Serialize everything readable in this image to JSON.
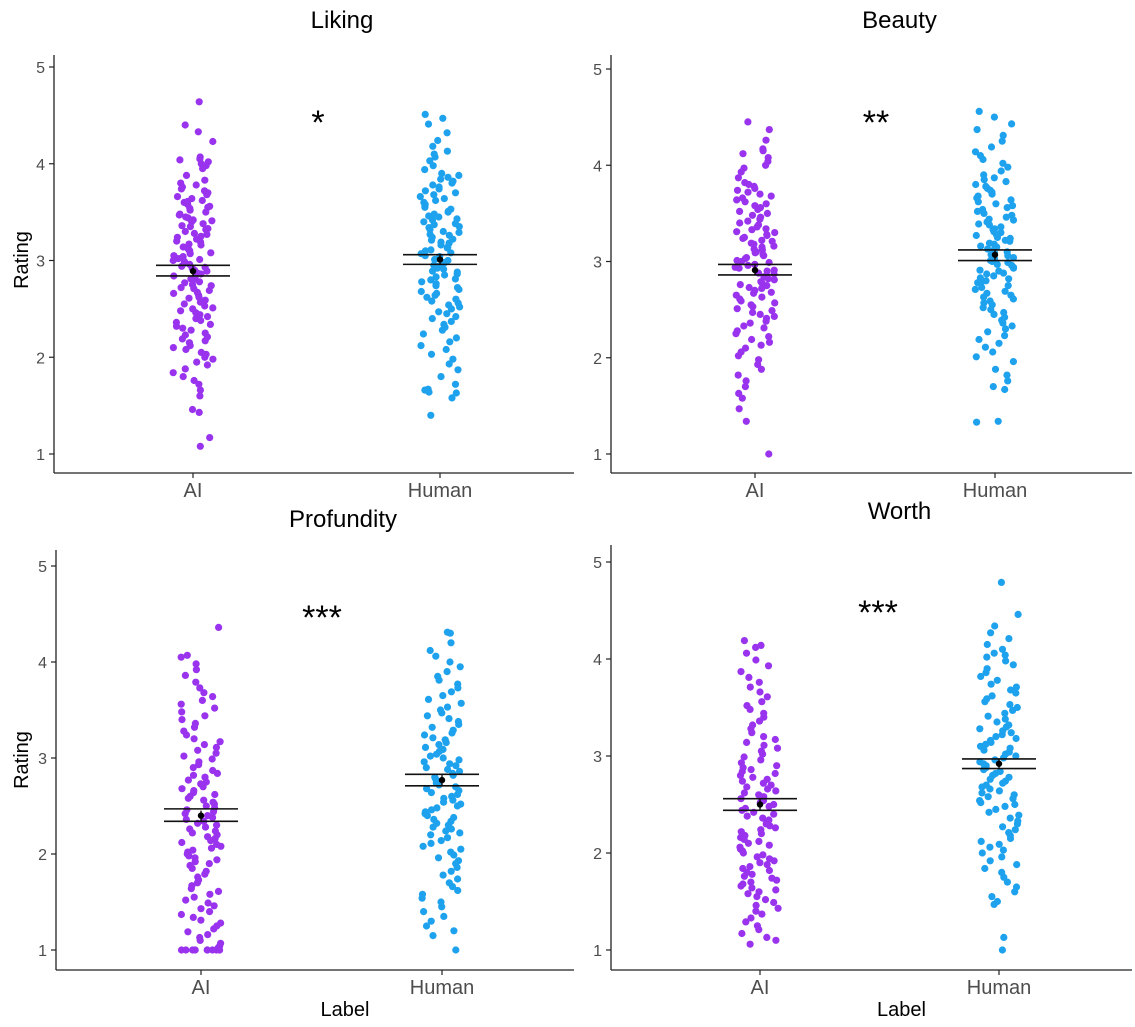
{
  "figure": {
    "y_axis_label": "Rating",
    "x_axis_label": "Label"
  },
  "colors": {
    "AI": "#9933ee",
    "Human": "#1fa2ee",
    "axis": "#222222",
    "tick_label": "#4d4d4d",
    "error_bar": "#111111"
  },
  "chart_data": [
    {
      "type": "scatter",
      "title": "Liking",
      "categories": [
        "AI",
        "Human"
      ],
      "ylim": [
        0.92,
        5.1
      ],
      "yticks": [
        1,
        2,
        3,
        4,
        5
      ],
      "grid": false,
      "significance": "*",
      "series": [
        {
          "name": "AI",
          "ci_low": 2.84,
          "ci_high": 2.95,
          "mean": 2.89,
          "values": [
            4.64,
            4.4,
            4.33,
            4.23,
            4.07,
            4.05,
            4.04,
            4.02,
            4.0,
            3.98,
            3.95,
            3.88,
            3.83,
            3.8,
            3.78,
            3.76,
            3.74,
            3.72,
            3.7,
            3.68,
            3.66,
            3.64,
            3.62,
            3.61,
            3.6,
            3.58,
            3.56,
            3.55,
            3.54,
            3.52,
            3.5,
            3.48,
            3.47,
            3.45,
            3.44,
            3.42,
            3.41,
            3.4,
            3.38,
            3.36,
            3.35,
            3.33,
            3.32,
            3.3,
            3.28,
            3.27,
            3.25,
            3.24,
            3.22,
            3.2,
            3.19,
            3.17,
            3.16,
            3.14,
            3.12,
            3.11,
            3.1,
            3.08,
            3.07,
            3.05,
            3.04,
            3.02,
            3.01,
            3.0,
            2.99,
            2.97,
            2.96,
            2.94,
            2.93,
            2.92,
            2.9,
            2.89,
            2.87,
            2.86,
            2.84,
            2.83,
            2.81,
            2.8,
            2.78,
            2.77,
            2.75,
            2.74,
            2.72,
            2.71,
            2.69,
            2.67,
            2.66,
            2.64,
            2.62,
            2.61,
            2.59,
            2.57,
            2.55,
            2.53,
            2.51,
            2.5,
            2.48,
            2.46,
            2.44,
            2.42,
            2.4,
            2.38,
            2.36,
            2.34,
            2.32,
            2.3,
            2.28,
            2.25,
            2.23,
            2.21,
            2.19,
            2.17,
            2.15,
            2.12,
            2.1,
            2.08,
            2.05,
            2.03,
            2.0,
            1.98,
            1.95,
            1.92,
            1.88,
            1.84,
            1.8,
            1.76,
            1.72,
            1.66,
            1.6,
            1.46,
            1.43,
            1.17,
            1.08
          ]
        },
        {
          "name": "Human",
          "ci_low": 2.96,
          "ci_high": 3.06,
          "mean": 3.01,
          "values": [
            4.51,
            4.47,
            4.41,
            4.32,
            4.24,
            4.18,
            4.13,
            4.1,
            4.07,
            4.03,
            3.98,
            3.94,
            3.9,
            3.88,
            3.86,
            3.84,
            3.82,
            3.8,
            3.78,
            3.76,
            3.74,
            3.72,
            3.7,
            3.68,
            3.66,
            3.64,
            3.62,
            3.6,
            3.58,
            3.56,
            3.55,
            3.53,
            3.51,
            3.5,
            3.48,
            3.46,
            3.45,
            3.43,
            3.42,
            3.4,
            3.38,
            3.37,
            3.35,
            3.34,
            3.32,
            3.3,
            3.29,
            3.27,
            3.26,
            3.24,
            3.22,
            3.21,
            3.19,
            3.18,
            3.16,
            3.14,
            3.13,
            3.11,
            3.1,
            3.08,
            3.07,
            3.05,
            3.04,
            3.02,
            3.01,
            3.0,
            2.98,
            2.97,
            2.95,
            2.94,
            2.92,
            2.91,
            2.89,
            2.88,
            2.86,
            2.85,
            2.83,
            2.81,
            2.8,
            2.78,
            2.76,
            2.74,
            2.72,
            2.7,
            2.68,
            2.66,
            2.64,
            2.62,
            2.6,
            2.58,
            2.56,
            2.54,
            2.52,
            2.5,
            2.47,
            2.45,
            2.42,
            2.4,
            2.37,
            2.34,
            2.31,
            2.28,
            2.24,
            2.2,
            2.16,
            2.12,
            2.08,
            2.03,
            1.98,
            1.93,
            1.87,
            1.8,
            1.72,
            1.67,
            1.66,
            1.64,
            1.63,
            1.58,
            1.4
          ]
        }
      ]
    },
    {
      "type": "scatter",
      "title": "Beauty",
      "categories": [
        "AI",
        "Human"
      ],
      "ylim": [
        0.92,
        5.1
      ],
      "yticks": [
        1,
        2,
        3,
        4,
        5
      ],
      "grid": false,
      "significance": "**",
      "series": [
        {
          "name": "AI",
          "ci_low": 2.86,
          "ci_high": 2.97,
          "mean": 2.91,
          "values": [
            4.45,
            4.37,
            4.26,
            4.17,
            4.15,
            4.12,
            4.08,
            4.04,
            4.0,
            3.97,
            3.93,
            3.87,
            3.82,
            3.8,
            3.78,
            3.76,
            3.74,
            3.72,
            3.7,
            3.68,
            3.66,
            3.64,
            3.62,
            3.6,
            3.58,
            3.56,
            3.54,
            3.52,
            3.5,
            3.48,
            3.46,
            3.44,
            3.42,
            3.4,
            3.38,
            3.36,
            3.34,
            3.33,
            3.31,
            3.3,
            3.28,
            3.27,
            3.25,
            3.24,
            3.22,
            3.21,
            3.19,
            3.18,
            3.16,
            3.15,
            3.13,
            3.12,
            3.1,
            3.09,
            3.07,
            3.06,
            3.04,
            3.03,
            3.01,
            3.0,
            2.99,
            2.97,
            2.96,
            2.94,
            2.93,
            2.91,
            2.9,
            2.88,
            2.87,
            2.85,
            2.84,
            2.82,
            2.81,
            2.79,
            2.78,
            2.76,
            2.75,
            2.73,
            2.72,
            2.7,
            2.68,
            2.67,
            2.65,
            2.63,
            2.61,
            2.59,
            2.57,
            2.55,
            2.53,
            2.51,
            2.49,
            2.47,
            2.45,
            2.43,
            2.41,
            2.38,
            2.36,
            2.33,
            2.31,
            2.28,
            2.25,
            2.22,
            2.19,
            2.16,
            2.13,
            2.1,
            2.06,
            2.02,
            1.98,
            1.93,
            1.88,
            1.82,
            1.76,
            1.7,
            1.63,
            1.58,
            1.47,
            1.34,
            1.0
          ]
        },
        {
          "name": "Human",
          "ci_low": 3.01,
          "ci_high": 3.12,
          "mean": 3.07,
          "values": [
            4.56,
            4.5,
            4.43,
            4.37,
            4.31,
            4.25,
            4.19,
            4.14,
            4.1,
            4.06,
            4.02,
            3.98,
            3.94,
            3.9,
            3.87,
            3.85,
            3.83,
            3.8,
            3.78,
            3.76,
            3.74,
            3.72,
            3.7,
            3.68,
            3.66,
            3.64,
            3.62,
            3.6,
            3.58,
            3.56,
            3.54,
            3.52,
            3.5,
            3.48,
            3.46,
            3.44,
            3.43,
            3.41,
            3.39,
            3.38,
            3.36,
            3.34,
            3.33,
            3.31,
            3.3,
            3.28,
            3.27,
            3.25,
            3.24,
            3.22,
            3.21,
            3.19,
            3.18,
            3.16,
            3.15,
            3.13,
            3.12,
            3.1,
            3.09,
            3.07,
            3.06,
            3.04,
            3.03,
            3.01,
            3.0,
            2.99,
            2.97,
            2.96,
            2.94,
            2.93,
            2.91,
            2.9,
            2.88,
            2.87,
            2.85,
            2.83,
            2.82,
            2.8,
            2.78,
            2.77,
            2.75,
            2.73,
            2.71,
            2.69,
            2.67,
            2.65,
            2.63,
            2.61,
            2.59,
            2.57,
            2.55,
            2.52,
            2.5,
            2.47,
            2.45,
            2.42,
            2.39,
            2.36,
            2.33,
            2.3,
            2.27,
            2.23,
            2.19,
            2.15,
            2.11,
            2.06,
            2.01,
            1.96,
            1.88,
            1.82,
            1.76,
            1.7,
            1.67,
            1.34,
            1.33
          ]
        }
      ]
    },
    {
      "type": "scatter",
      "title": "Profundity",
      "categories": [
        "AI",
        "Human"
      ],
      "ylim": [
        0.92,
        5.1
      ],
      "yticks": [
        1,
        2,
        3,
        4,
        5
      ],
      "grid": false,
      "significance": "***",
      "xlabel": "Label",
      "series": [
        {
          "name": "AI",
          "ci_low": 2.34,
          "ci_high": 2.47,
          "mean": 2.4,
          "values": [
            4.36,
            4.07,
            4.05,
            3.98,
            3.92,
            3.86,
            3.79,
            3.73,
            3.68,
            3.64,
            3.6,
            3.56,
            3.52,
            3.48,
            3.44,
            3.4,
            3.36,
            3.32,
            3.28,
            3.24,
            3.2,
            3.17,
            3.14,
            3.11,
            3.08,
            3.05,
            3.02,
            2.99,
            2.96,
            2.93,
            2.9,
            2.87,
            2.84,
            2.82,
            2.8,
            2.77,
            2.75,
            2.73,
            2.7,
            2.68,
            2.66,
            2.64,
            2.62,
            2.6,
            2.58,
            2.56,
            2.54,
            2.52,
            2.5,
            2.48,
            2.46,
            2.44,
            2.42,
            2.4,
            2.38,
            2.36,
            2.34,
            2.32,
            2.3,
            2.28,
            2.26,
            2.24,
            2.22,
            2.2,
            2.18,
            2.16,
            2.14,
            2.12,
            2.1,
            2.08,
            2.06,
            2.04,
            2.02,
            2.0,
            1.98,
            1.96,
            1.94,
            1.92,
            1.9,
            1.88,
            1.85,
            1.82,
            1.79,
            1.76,
            1.73,
            1.7,
            1.67,
            1.64,
            1.61,
            1.58,
            1.55,
            1.52,
            1.49,
            1.46,
            1.43,
            1.4,
            1.37,
            1.34,
            1.31,
            1.28,
            1.25,
            1.22,
            1.19,
            1.16,
            1.13,
            1.1,
            1.07,
            1.04,
            1.02,
            1.0,
            1.0,
            1.0,
            1.0,
            1.0,
            1.0,
            1.0,
            1.0,
            1.0,
            1.0
          ]
        },
        {
          "name": "Human",
          "ci_low": 2.71,
          "ci_high": 2.83,
          "mean": 2.77,
          "values": [
            4.31,
            4.3,
            4.2,
            4.12,
            4.06,
            4.0,
            3.95,
            3.9,
            3.85,
            3.81,
            3.77,
            3.73,
            3.69,
            3.65,
            3.61,
            3.57,
            3.53,
            3.5,
            3.47,
            3.44,
            3.41,
            3.38,
            3.35,
            3.32,
            3.29,
            3.26,
            3.24,
            3.21,
            3.19,
            3.16,
            3.14,
            3.11,
            3.09,
            3.07,
            3.04,
            3.02,
            3.0,
            2.98,
            2.96,
            2.94,
            2.92,
            2.9,
            2.88,
            2.86,
            2.84,
            2.82,
            2.8,
            2.78,
            2.76,
            2.74,
            2.72,
            2.7,
            2.68,
            2.66,
            2.64,
            2.62,
            2.6,
            2.58,
            2.56,
            2.54,
            2.52,
            2.5,
            2.48,
            2.46,
            2.44,
            2.42,
            2.4,
            2.38,
            2.36,
            2.34,
            2.32,
            2.3,
            2.28,
            2.26,
            2.24,
            2.22,
            2.2,
            2.17,
            2.14,
            2.11,
            2.08,
            2.05,
            2.02,
            1.99,
            1.96,
            1.93,
            1.9,
            1.86,
            1.82,
            1.78,
            1.74,
            1.7,
            1.66,
            1.62,
            1.58,
            1.54,
            1.5,
            1.45,
            1.4,
            1.35,
            1.3,
            1.25,
            1.2,
            1.15,
            1.0
          ]
        }
      ]
    },
    {
      "type": "scatter",
      "title": "Worth",
      "categories": [
        "AI",
        "Human"
      ],
      "ylim": [
        0.92,
        5.1
      ],
      "yticks": [
        1,
        2,
        3,
        4,
        5
      ],
      "grid": false,
      "significance": "***",
      "xlabel": "Label",
      "series": [
        {
          "name": "AI",
          "ci_low": 2.44,
          "ci_high": 2.56,
          "mean": 2.5,
          "values": [
            4.19,
            4.14,
            4.12,
            4.06,
            3.99,
            3.93,
            3.87,
            3.81,
            3.76,
            3.71,
            3.66,
            3.61,
            3.56,
            3.52,
            3.48,
            3.44,
            3.4,
            3.36,
            3.32,
            3.28,
            3.24,
            3.2,
            3.17,
            3.14,
            3.11,
            3.08,
            3.05,
            3.02,
            2.99,
            2.96,
            2.93,
            2.9,
            2.88,
            2.86,
            2.84,
            2.82,
            2.8,
            2.78,
            2.76,
            2.74,
            2.72,
            2.7,
            2.68,
            2.66,
            2.64,
            2.62,
            2.6,
            2.58,
            2.56,
            2.54,
            2.52,
            2.5,
            2.48,
            2.46,
            2.44,
            2.42,
            2.4,
            2.38,
            2.36,
            2.34,
            2.32,
            2.3,
            2.28,
            2.26,
            2.24,
            2.22,
            2.2,
            2.18,
            2.16,
            2.14,
            2.12,
            2.1,
            2.08,
            2.06,
            2.04,
            2.02,
            2.0,
            1.98,
            1.96,
            1.94,
            1.92,
            1.9,
            1.88,
            1.86,
            1.84,
            1.82,
            1.8,
            1.78,
            1.76,
            1.74,
            1.72,
            1.7,
            1.68,
            1.66,
            1.64,
            1.62,
            1.6,
            1.58,
            1.55,
            1.52,
            1.49,
            1.46,
            1.43,
            1.4,
            1.37,
            1.33,
            1.29,
            1.25,
            1.21,
            1.17,
            1.13,
            1.1,
            1.06
          ]
        },
        {
          "name": "Human",
          "ci_low": 2.87,
          "ci_high": 2.97,
          "mean": 2.92,
          "values": [
            4.79,
            4.46,
            4.34,
            4.27,
            4.21,
            4.15,
            4.1,
            4.06,
            4.04,
            4.02,
            3.98,
            3.94,
            3.9,
            3.86,
            3.82,
            3.78,
            3.74,
            3.71,
            3.68,
            3.65,
            3.62,
            3.59,
            3.56,
            3.53,
            3.5,
            3.47,
            3.44,
            3.41,
            3.38,
            3.35,
            3.32,
            3.3,
            3.28,
            3.26,
            3.24,
            3.22,
            3.2,
            3.18,
            3.16,
            3.14,
            3.12,
            3.1,
            3.08,
            3.06,
            3.04,
            3.02,
            3.0,
            2.98,
            2.96,
            2.94,
            2.92,
            2.9,
            2.88,
            2.86,
            2.84,
            2.82,
            2.8,
            2.78,
            2.76,
            2.74,
            2.72,
            2.7,
            2.68,
            2.66,
            2.64,
            2.62,
            2.6,
            2.58,
            2.56,
            2.54,
            2.52,
            2.5,
            2.48,
            2.45,
            2.42,
            2.39,
            2.36,
            2.33,
            2.3,
            2.27,
            2.24,
            2.21,
            2.18,
            2.15,
            2.12,
            2.09,
            2.06,
            2.03,
            2.0,
            1.96,
            1.92,
            1.88,
            1.84,
            1.8,
            1.75,
            1.7,
            1.65,
            1.6,
            1.55,
            1.5,
            1.47,
            1.13,
            1.0
          ]
        }
      ]
    }
  ]
}
